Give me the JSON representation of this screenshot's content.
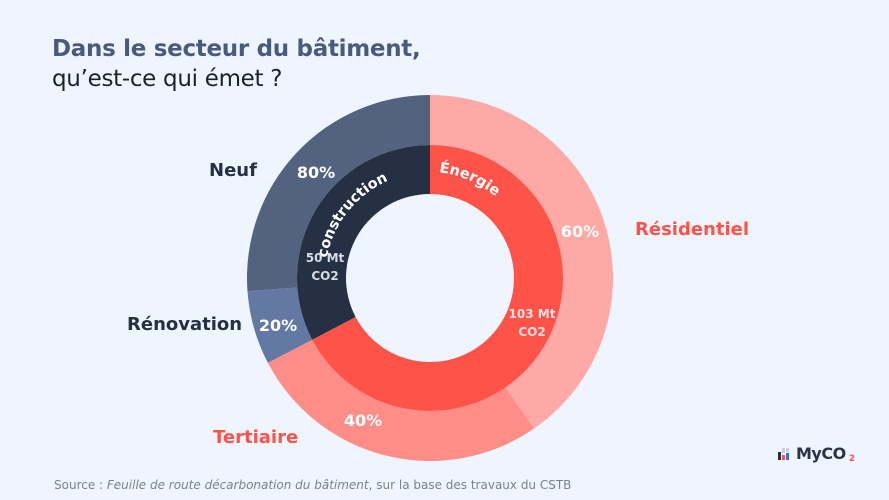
{
  "title": {
    "line1": "Dans le secteur du bâtiment,",
    "line2": "qu’est-ce qui émet ?"
  },
  "source": {
    "prefix": "Source : ",
    "italic": "Feuille de route décarbonation du bâtiment",
    "suffix": ", sur la base des travaux du CSTB"
  },
  "logo": {
    "text": "MyCO",
    "sub": "2"
  },
  "colors": {
    "background": "#eef5fe",
    "construction": "#253045",
    "energie": "#fe5349",
    "neuf": "#53627f",
    "renovation": "#6378a3",
    "residentiel": "#fda9a5",
    "tertiaire": "#fe8d88",
    "label_dark": "#253045",
    "label_red": "#fe5349"
  },
  "chart_data": {
    "type": "pie",
    "subtype": "nested-donut",
    "title": "Dans le secteur du bâtiment, qu’est-ce qui émet ?",
    "inner": [
      {
        "name": "Construction",
        "value": 50,
        "value_label": "50 Mt",
        "unit_label": "CO2"
      },
      {
        "name": "Énergie",
        "value": 103,
        "value_label": "103 Mt",
        "unit_label": "CO2"
      }
    ],
    "outer": [
      {
        "parent": "Énergie",
        "name": "Résidentiel",
        "percent": 60,
        "label": "60%"
      },
      {
        "parent": "Énergie",
        "name": "Tertiaire",
        "percent": 40,
        "label": "40%"
      },
      {
        "parent": "Construction",
        "name": "Rénovation",
        "percent": 20,
        "label": "20%"
      },
      {
        "parent": "Construction",
        "name": "Neuf",
        "percent": 80,
        "label": "80%"
      }
    ]
  }
}
